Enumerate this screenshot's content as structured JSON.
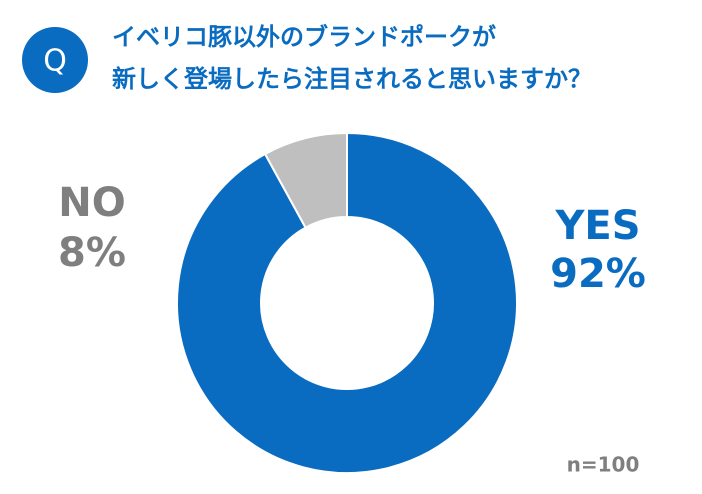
{
  "badge": "Q",
  "chart_data": {
    "type": "pie",
    "title": [
      "イベリコ豚以外のブランドポークが",
      "新しく登場したら注目されると思いますか？"
    ],
    "categories": [
      "YES",
      "NO"
    ],
    "values": [
      92,
      8
    ],
    "value_labels": [
      "92%",
      "8%"
    ],
    "colors": [
      "#0a6cc0",
      "#bfbfbf"
    ],
    "label_colors": [
      "#0a6cc0",
      "#7f7f7f"
    ],
    "donut": true,
    "annotation": "n=100"
  }
}
